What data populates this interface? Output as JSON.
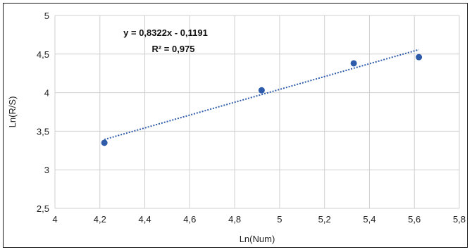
{
  "chart_data": {
    "type": "scatter",
    "title": "",
    "xlabel": "Ln(Num)",
    "ylabel": "Ln(R/S)",
    "xlim": [
      4,
      5.8
    ],
    "ylim": [
      2.5,
      5
    ],
    "xticks": [
      4,
      4.2,
      4.4,
      4.6,
      4.8,
      5,
      5.2,
      5.4,
      5.6,
      5.8
    ],
    "xtick_labels": [
      "4",
      "4,2",
      "4,4",
      "4,6",
      "4,8",
      "5",
      "5,2",
      "5,4",
      "5,6",
      "5,8"
    ],
    "yticks": [
      2.5,
      3,
      3.5,
      4,
      4.5,
      5
    ],
    "ytick_labels": [
      "2,5",
      "3",
      "3,5",
      "4",
      "4,5",
      "5"
    ],
    "grid": true,
    "series": [
      {
        "points": [
          {
            "x": 4.22,
            "y": 3.35
          },
          {
            "x": 4.92,
            "y": 4.03
          },
          {
            "x": 5.33,
            "y": 4.38
          },
          {
            "x": 5.62,
            "y": 4.46
          }
        ],
        "color": "#2e5caa"
      }
    ],
    "trendline": {
      "slope": 0.8322,
      "intercept": -0.1191,
      "x_range": [
        4.22,
        5.62
      ],
      "style": "dotted",
      "color": "#2e5caa"
    },
    "annotations": {
      "equation": "y = 0,8322x - 0,1191",
      "r_squared": "R² = 0,975"
    }
  }
}
